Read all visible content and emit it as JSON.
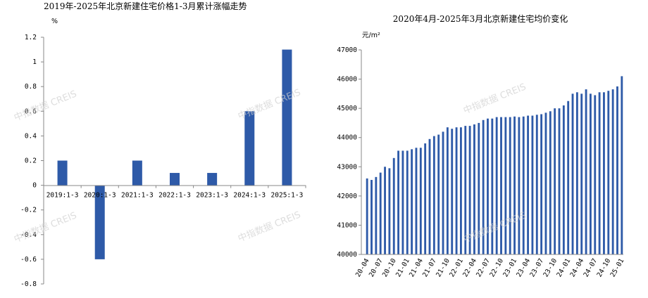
{
  "watermark": "中指数据 CREIS",
  "chart_data": [
    {
      "type": "bar",
      "title": "2019年-2025年北京新建住宅价格1-3月累计涨幅走势",
      "ylabel": "%",
      "ylim": [
        -0.8,
        1.2
      ],
      "yticks": [
        "1.2",
        "1",
        "0.8",
        "0.6",
        "0.4",
        "0.2",
        "0",
        "-0.2",
        "-0.4",
        "-0.6",
        "-0.8"
      ],
      "categories": [
        "2019:1-3",
        "2020:1-3",
        "2021:1-3",
        "2022:1-3",
        "2023:1-3",
        "2024:1-3",
        "2025:1-3"
      ],
      "values": [
        0.2,
        -0.6,
        0.2,
        0.1,
        0.1,
        0.6,
        1.1
      ],
      "color": "#2e5aa8",
      "grid": false
    },
    {
      "type": "bar",
      "title": "2020年4月-2025年3月北京新建住宅均价变化",
      "ylabel": "元/m²",
      "ylim": [
        40000,
        47000
      ],
      "yticks": [
        "47000",
        "46000",
        "45000",
        "44000",
        "43000",
        "42000",
        "41000",
        "40000"
      ],
      "xticks": [
        "20-04",
        "20-07",
        "20-10",
        "21-01",
        "21-04",
        "21-07",
        "21-10",
        "22-01",
        "22-04",
        "22-07",
        "22-10",
        "23-01",
        "23-04",
        "23-07",
        "23-10",
        "24-01",
        "24-04",
        "24-07",
        "24-10",
        "25-01"
      ],
      "values": [
        42600,
        42550,
        42650,
        42800,
        43000,
        42950,
        43300,
        43550,
        43550,
        43550,
        43600,
        43650,
        43650,
        43800,
        43950,
        44050,
        44100,
        44200,
        44350,
        44300,
        44350,
        44350,
        44400,
        44400,
        44450,
        44500,
        44600,
        44650,
        44650,
        44700,
        44700,
        44700,
        44700,
        44720,
        44700,
        44720,
        44750,
        44750,
        44780,
        44800,
        44850,
        44900,
        45000,
        45000,
        45100,
        45250,
        45500,
        45550,
        45500,
        45650,
        45500,
        45450,
        45550,
        45550,
        45600,
        45650,
        45750,
        46100
      ],
      "color": "#2e5aa8",
      "grid": false
    }
  ]
}
